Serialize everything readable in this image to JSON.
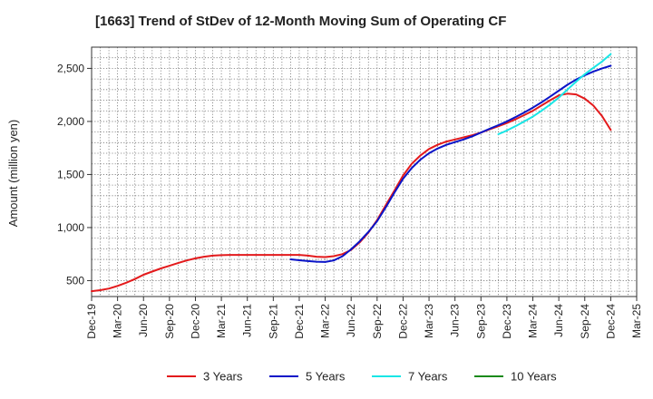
{
  "chart_data": {
    "type": "line",
    "title": "[1663]  Trend of StDev of 12-Month Moving Sum of Operating CF",
    "ylabel": "Amount (million yen)",
    "xlabel": "",
    "ylim": [
      350,
      2700
    ],
    "yticks": [
      500,
      1000,
      1500,
      2000,
      2500
    ],
    "ytick_labels": [
      "500",
      "1,000",
      "1,500",
      "2,000",
      "2,500"
    ],
    "x_categories": [
      "Dec-19",
      "Mar-20",
      "Jun-20",
      "Sep-20",
      "Dec-20",
      "Mar-21",
      "Jun-21",
      "Sep-21",
      "Dec-21",
      "Mar-22",
      "Jun-22",
      "Sep-22",
      "Dec-22",
      "Mar-23",
      "Jun-23",
      "Sep-23",
      "Dec-23",
      "Mar-24",
      "Jun-24",
      "Sep-24",
      "Dec-24",
      "Mar-25"
    ],
    "grid": true,
    "legend_position": "bottom",
    "series": [
      {
        "name": "3 Years",
        "color": "#e31a1c",
        "points": [
          [
            0,
            400
          ],
          [
            0.33,
            410
          ],
          [
            0.67,
            425
          ],
          [
            1,
            450
          ],
          [
            1.33,
            480
          ],
          [
            1.67,
            515
          ],
          [
            2,
            555
          ],
          [
            2.33,
            585
          ],
          [
            2.67,
            615
          ],
          [
            3,
            640
          ],
          [
            3.33,
            665
          ],
          [
            3.67,
            690
          ],
          [
            4,
            710
          ],
          [
            4.33,
            725
          ],
          [
            4.67,
            735
          ],
          [
            5,
            740
          ],
          [
            5.33,
            742
          ],
          [
            5.67,
            742
          ],
          [
            6,
            742
          ],
          [
            6.33,
            742
          ],
          [
            6.67,
            742
          ],
          [
            7,
            742
          ],
          [
            7.33,
            742
          ],
          [
            7.67,
            742
          ],
          [
            8,
            742
          ],
          [
            8.33,
            735
          ],
          [
            8.67,
            725
          ],
          [
            9,
            722
          ],
          [
            9.33,
            730
          ],
          [
            9.67,
            750
          ],
          [
            10,
            790
          ],
          [
            10.33,
            860
          ],
          [
            10.67,
            955
          ],
          [
            11,
            1070
          ],
          [
            11.33,
            1210
          ],
          [
            11.67,
            1350
          ],
          [
            12,
            1490
          ],
          [
            12.33,
            1600
          ],
          [
            12.67,
            1680
          ],
          [
            13,
            1740
          ],
          [
            13.33,
            1780
          ],
          [
            13.67,
            1810
          ],
          [
            14,
            1830
          ],
          [
            14.33,
            1850
          ],
          [
            14.67,
            1870
          ],
          [
            15,
            1895
          ],
          [
            15.33,
            1925
          ],
          [
            15.67,
            1955
          ],
          [
            16,
            1985
          ],
          [
            16.33,
            2020
          ],
          [
            16.67,
            2060
          ],
          [
            17,
            2100
          ],
          [
            17.33,
            2150
          ],
          [
            17.67,
            2200
          ],
          [
            18,
            2245
          ],
          [
            18.33,
            2262
          ],
          [
            18.67,
            2255
          ],
          [
            19,
            2215
          ],
          [
            19.33,
            2150
          ],
          [
            19.67,
            2050
          ],
          [
            20,
            1920
          ]
        ]
      },
      {
        "name": "5 Years",
        "color": "#0a14c8",
        "points": [
          [
            7.67,
            700
          ],
          [
            8,
            692
          ],
          [
            8.33,
            684
          ],
          [
            8.67,
            678
          ],
          [
            9,
            676
          ],
          [
            9.33,
            690
          ],
          [
            9.67,
            730
          ],
          [
            10,
            795
          ],
          [
            10.33,
            870
          ],
          [
            10.67,
            960
          ],
          [
            11,
            1060
          ],
          [
            11.33,
            1190
          ],
          [
            11.67,
            1330
          ],
          [
            12,
            1460
          ],
          [
            12.33,
            1560
          ],
          [
            12.67,
            1640
          ],
          [
            13,
            1700
          ],
          [
            13.33,
            1745
          ],
          [
            13.67,
            1780
          ],
          [
            14,
            1805
          ],
          [
            14.33,
            1830
          ],
          [
            14.67,
            1860
          ],
          [
            15,
            1895
          ],
          [
            15.33,
            1930
          ],
          [
            15.67,
            1965
          ],
          [
            16,
            2000
          ],
          [
            16.33,
            2040
          ],
          [
            16.67,
            2085
          ],
          [
            17,
            2130
          ],
          [
            17.33,
            2180
          ],
          [
            17.67,
            2235
          ],
          [
            18,
            2290
          ],
          [
            18.33,
            2345
          ],
          [
            18.67,
            2395
          ],
          [
            19,
            2435
          ],
          [
            19.33,
            2470
          ],
          [
            19.67,
            2500
          ],
          [
            20,
            2525
          ]
        ]
      },
      {
        "name": "7 Years",
        "color": "#19e6e6",
        "points": [
          [
            15.67,
            1880
          ],
          [
            16,
            1915
          ],
          [
            16.33,
            1955
          ],
          [
            16.67,
            2000
          ],
          [
            17,
            2045
          ],
          [
            17.33,
            2100
          ],
          [
            17.67,
            2160
          ],
          [
            18,
            2225
          ],
          [
            18.33,
            2300
          ],
          [
            18.67,
            2375
          ],
          [
            19,
            2445
          ],
          [
            19.33,
            2505
          ],
          [
            19.67,
            2565
          ],
          [
            20,
            2635
          ]
        ]
      },
      {
        "name": "10 Years",
        "color": "#1a8a1a",
        "points": []
      }
    ]
  }
}
